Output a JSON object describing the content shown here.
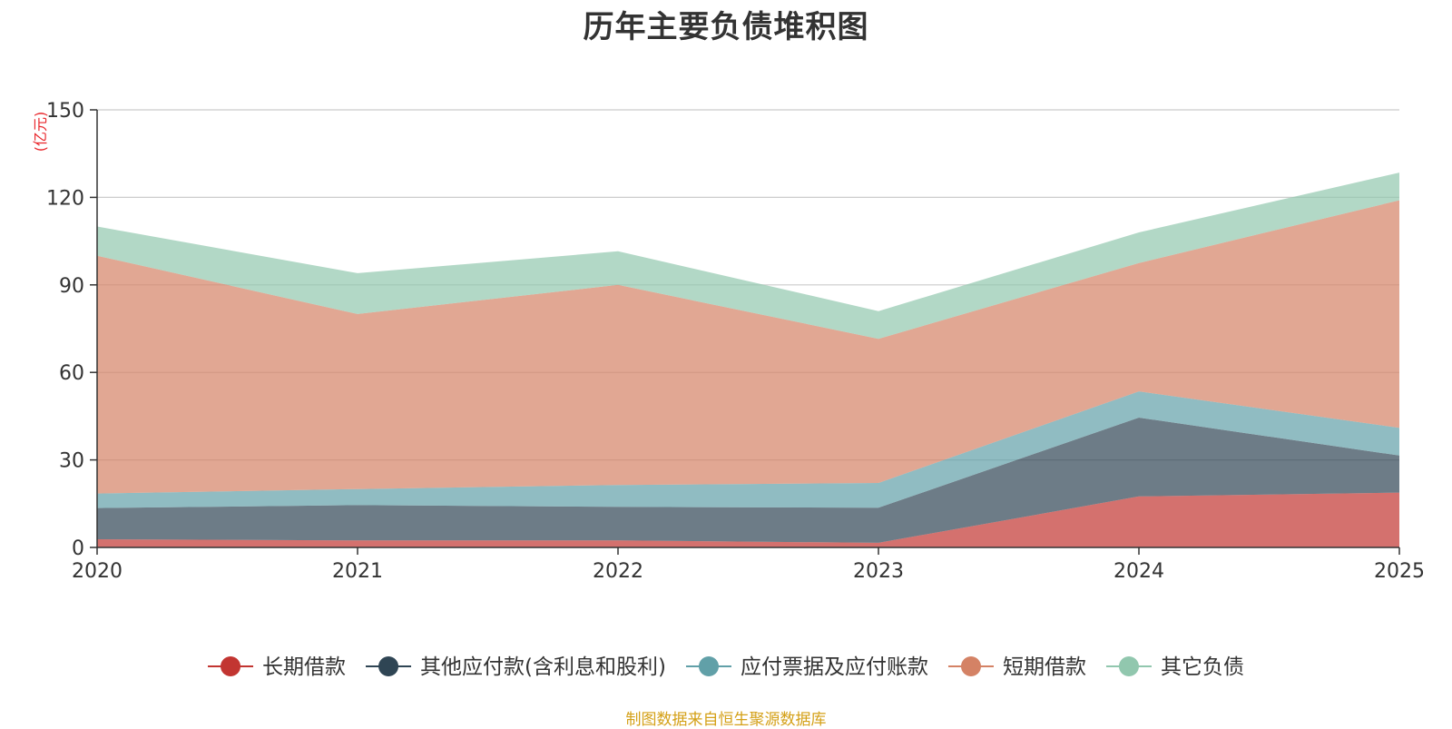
{
  "chart_data": {
    "type": "area",
    "stacked": true,
    "title": "历年主要负债堆积图",
    "unit_label": "(亿元)",
    "unit_color": "#e8252a",
    "x": [
      "2020",
      "2021",
      "2022",
      "2023",
      "2024",
      "2025"
    ],
    "ylim": [
      0,
      150
    ],
    "yticks": [
      "0",
      "30",
      "60",
      "90",
      "120",
      "150"
    ],
    "ytick_values": [
      0,
      30,
      60,
      90,
      120,
      150
    ],
    "grid": true,
    "legend_position": "bottom",
    "series": [
      {
        "name": "长期借款",
        "color": "#c23531",
        "values": [
          2.8,
          2.4,
          2.4,
          1.6,
          17.5,
          18.8
        ]
      },
      {
        "name": "其他应付款(含利息和股利)",
        "color": "#2f4554",
        "values": [
          10.7,
          12.1,
          11.5,
          12.0,
          27.0,
          12.7
        ]
      },
      {
        "name": "应付票据及应付账款",
        "color": "#61a0a8",
        "values": [
          5.0,
          5.5,
          7.5,
          8.5,
          9.0,
          9.5
        ]
      },
      {
        "name": "短期借款",
        "color": "#d48265",
        "values": [
          81.5,
          60.0,
          68.6,
          49.4,
          44.0,
          78.0
        ]
      },
      {
        "name": "其它负债",
        "color": "#91c7ae",
        "values": [
          10.0,
          14.0,
          11.5,
          9.5,
          10.5,
          9.5
        ]
      }
    ]
  },
  "footer": {
    "source": "制图数据来自恒生聚源数据库",
    "source_color": "#d4a017"
  }
}
